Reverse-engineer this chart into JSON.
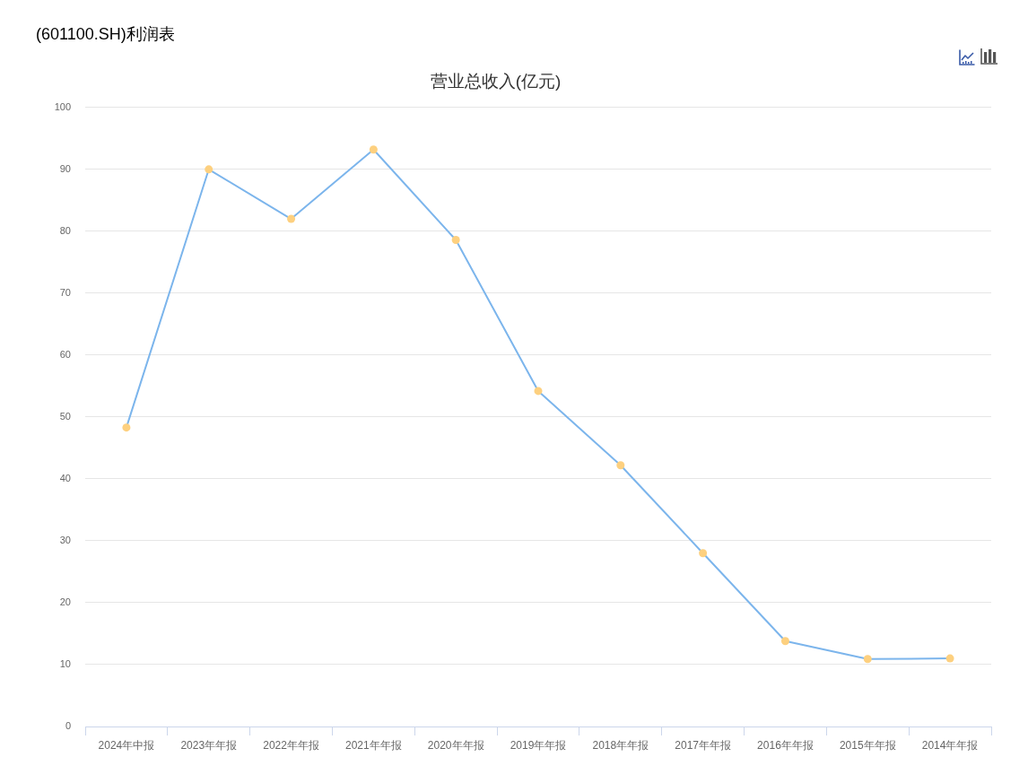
{
  "chart_data": {
    "type": "line",
    "title": "(601100.SH)利润表",
    "subtitle": "营业总收入(亿元)",
    "categories": [
      "2024年中报",
      "2023年年报",
      "2022年年报",
      "2021年年报",
      "2020年年报",
      "2019年年报",
      "2018年年报",
      "2017年年报",
      "2016年年报",
      "2015年年报",
      "2014年年报"
    ],
    "series": [
      {
        "color": "#7cb5ec",
        "colors": [
          "#fdd07f",
          "#fdd07f",
          "#fdd07f",
          "#fdd07f",
          "#fdd07f",
          "#fdd07f",
          "#fdd07f",
          "#fdd07f",
          "#fdd07f",
          "#fdd07f",
          "#fdd07f"
        ],
        "values": [
          48.3,
          90.0,
          82.0,
          93.2,
          78.6,
          54.2,
          42.2,
          28.0,
          13.8,
          10.9,
          11.0
        ]
      }
    ],
    "ylim": [
      0,
      100
    ],
    "yticks": [
      0,
      10,
      20,
      30,
      40,
      50,
      60,
      70,
      80,
      90,
      100
    ],
    "grid": "y",
    "legend": false,
    "marker": "circle",
    "line_style": "solid"
  }
}
